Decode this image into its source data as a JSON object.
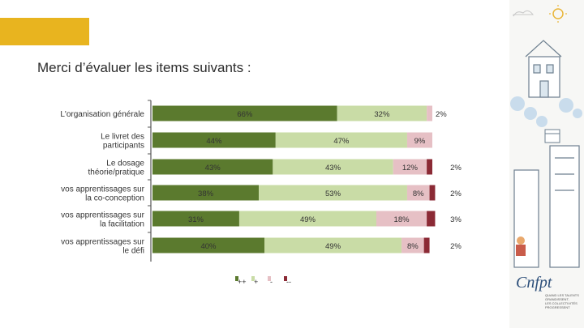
{
  "header": {
    "title": "Merci d’évaluer les items suivants :"
  },
  "colors": {
    "accent": "#e8b41f",
    "pp": "#5b7a2e",
    "p": "#c9dca6",
    "m": "#e6c0c5",
    "mm": "#8b2a35"
  },
  "chart_data": {
    "type": "bar",
    "orientation": "horizontal",
    "stacked": true,
    "title": "",
    "categories": [
      [
        "L'organisation générale"
      ],
      [
        "Le livret des",
        "participants"
      ],
      [
        "Le dosage",
        "théorie/pratique"
      ],
      [
        "vos apprentissages sur",
        "la co-conception"
      ],
      [
        "vos apprentissages sur",
        "la facilitation"
      ],
      [
        "vos apprentissages sur",
        "le défi"
      ]
    ],
    "series": [
      {
        "name": "++",
        "values": [
          66,
          44,
          43,
          38,
          31,
          40
        ],
        "labels": [
          "66%",
          "44%",
          "43%",
          "38%",
          "31%",
          "40%"
        ]
      },
      {
        "name": "+",
        "values": [
          32,
          47,
          43,
          53,
          49,
          49
        ],
        "labels": [
          "32%",
          "47%",
          "43%",
          "53%",
          "49%",
          "49%"
        ]
      },
      {
        "name": "-",
        "values": [
          2,
          9,
          12,
          8,
          18,
          8
        ],
        "labels": [
          "2%",
          "9%",
          "12%",
          "8%",
          "18%",
          "8%"
        ]
      },
      {
        "name": "--",
        "values": [
          0,
          0,
          2,
          2,
          3,
          2
        ],
        "labels": [
          "",
          "",
          "2%",
          "2%",
          "3%",
          "2%"
        ]
      }
    ],
    "xlim": [
      0,
      100
    ],
    "legend": "bottom"
  },
  "logo": {
    "line1": "QUAND LES TALENTS",
    "line2": "GRANDISSENT,",
    "line3": "LES COLLECTIVITÉS",
    "line4": "PROGRESSENT"
  }
}
